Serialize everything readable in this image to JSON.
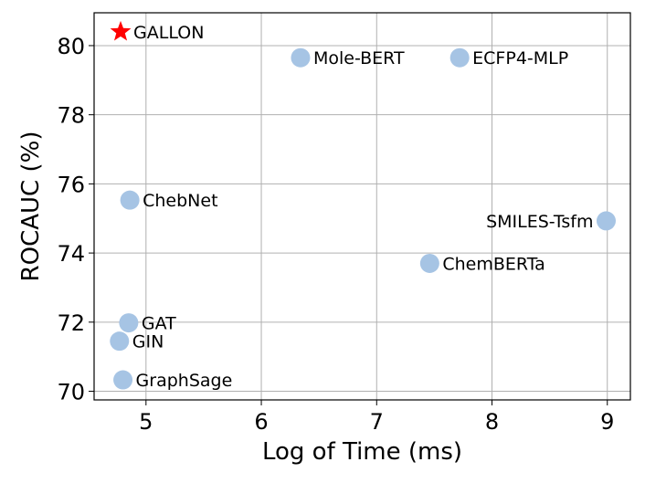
{
  "chart_data": {
    "type": "scatter",
    "xlabel": "Log of Time (ms)",
    "ylabel": "ROCAUC (%)",
    "xlim": [
      4.55,
      9.2
    ],
    "ylim": [
      69.75,
      80.95
    ],
    "xticks": [
      "5",
      "6",
      "7",
      "8",
      "9"
    ],
    "yticks": [
      "70",
      "72",
      "74",
      "76",
      "78",
      "80"
    ],
    "grid": true,
    "points": [
      {
        "label": "GALLON",
        "x": 4.78,
        "y": 80.4,
        "marker": "star",
        "color": "#ff0000"
      },
      {
        "label": "Mole-BERT",
        "x": 6.34,
        "y": 79.65,
        "marker": "circle",
        "color": "#a6c4e4"
      },
      {
        "label": "ECFP4-MLP",
        "x": 7.72,
        "y": 79.65,
        "marker": "circle",
        "color": "#a6c4e4"
      },
      {
        "label": "ChebNet",
        "x": 4.86,
        "y": 75.53,
        "marker": "circle",
        "color": "#a6c4e4"
      },
      {
        "label": "SMILES-Tsfm",
        "x": 8.99,
        "y": 74.93,
        "marker": "circle",
        "color": "#a6c4e4",
        "label_side": "left"
      },
      {
        "label": "ChemBERTa",
        "x": 7.46,
        "y": 73.7,
        "marker": "circle",
        "color": "#a6c4e4"
      },
      {
        "label": "GAT",
        "x": 4.85,
        "y": 71.98,
        "marker": "circle",
        "color": "#a6c4e4"
      },
      {
        "label": "GIN",
        "x": 4.77,
        "y": 71.45,
        "marker": "circle",
        "color": "#a6c4e4"
      },
      {
        "label": "GraphSage",
        "x": 4.8,
        "y": 70.33,
        "marker": "circle",
        "color": "#a6c4e4"
      }
    ]
  }
}
